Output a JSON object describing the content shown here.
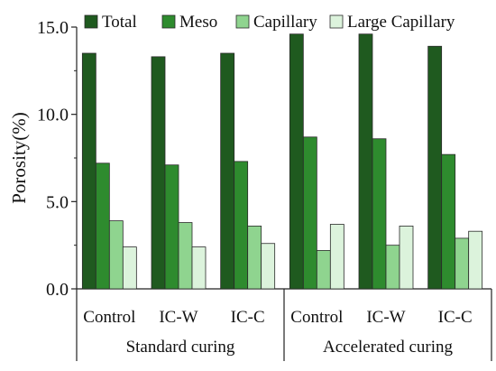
{
  "chart_data": {
    "type": "bar",
    "ylabel": "Porosity(%)",
    "xlabel": "",
    "ylim": [
      0,
      15
    ],
    "yticks": [
      "0.0",
      "5.0",
      "10.0",
      "15.0"
    ],
    "legend_position": "top",
    "categories": [
      "Control",
      "IC-W",
      "IC-C",
      "Control",
      "IC-W",
      "IC-C"
    ],
    "groups": [
      {
        "label": "Standard curing",
        "categories": [
          "Control",
          "IC-W",
          "IC-C"
        ]
      },
      {
        "label": "Accelerated curing",
        "categories": [
          "Control",
          "IC-W",
          "IC-C"
        ]
      }
    ],
    "series": [
      {
        "name": "Total",
        "color": "#1f5a1f",
        "values": [
          13.5,
          13.3,
          13.5,
          14.6,
          14.6,
          13.9
        ]
      },
      {
        "name": "Meso",
        "color": "#2e8b2e",
        "values": [
          7.2,
          7.1,
          7.3,
          8.7,
          8.6,
          7.7
        ]
      },
      {
        "name": "Capillary",
        "color": "#8fd48f",
        "values": [
          3.9,
          3.8,
          3.6,
          2.2,
          2.5,
          2.9
        ]
      },
      {
        "name": "Large Capillary",
        "color": "#dcf3dc",
        "values": [
          2.4,
          2.4,
          2.6,
          3.7,
          3.6,
          3.3
        ]
      }
    ]
  }
}
